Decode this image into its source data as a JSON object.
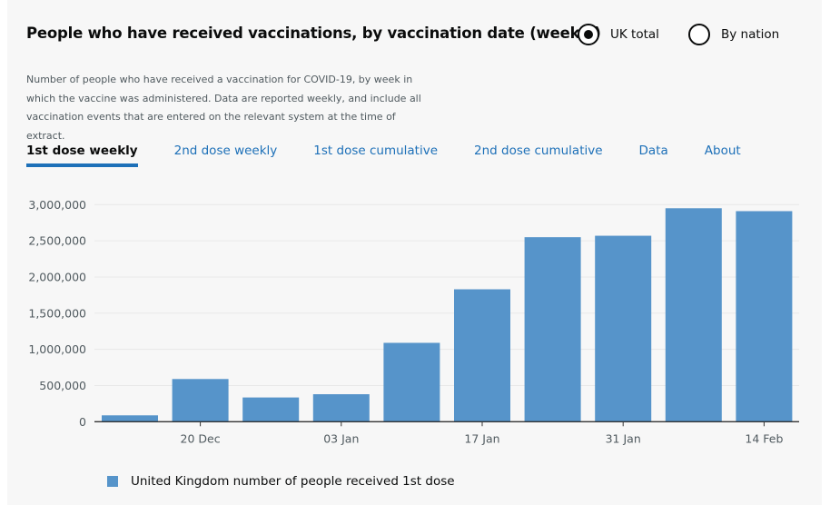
{
  "header": {
    "title": "People who have received vaccinations, by vaccination date (weekly)"
  },
  "view_options": [
    {
      "label": "UK total",
      "selected": true
    },
    {
      "label": "By nation",
      "selected": false
    }
  ],
  "description": "Number of people who have received a vaccination for COVID-19, by week in which the vaccine was administered. Data are reported weekly, and include all vaccination events that are entered on the relevant system at the time of extract.",
  "tabs": [
    {
      "label": "1st dose weekly",
      "active": true
    },
    {
      "label": "2nd dose weekly"
    },
    {
      "label": "1st dose cumulative"
    },
    {
      "label": "2nd dose cumulative"
    },
    {
      "label": "Data"
    },
    {
      "label": "About"
    }
  ],
  "colors": {
    "bar": "#5694ca",
    "tab_accent": "#1d70b8"
  },
  "chart_data": {
    "type": "bar",
    "x_tick_labels": [
      "",
      "20 Dec",
      "",
      "03 Jan",
      "",
      "17 Jan",
      "",
      "31 Jan",
      "",
      "14 Feb"
    ],
    "values": [
      88000,
      590000,
      335000,
      380000,
      1090000,
      1830000,
      2550000,
      2570000,
      2950000,
      2910000
    ],
    "ylim": [
      0,
      3000000
    ],
    "y_ticks": [
      "0",
      "500,000",
      "1,000,000",
      "1,500,000",
      "2,000,000",
      "2,500,000",
      "3,000,000"
    ],
    "grid": true,
    "legend_position": "bottom-left",
    "series_name": "United Kingdom number of people received 1st dose"
  }
}
